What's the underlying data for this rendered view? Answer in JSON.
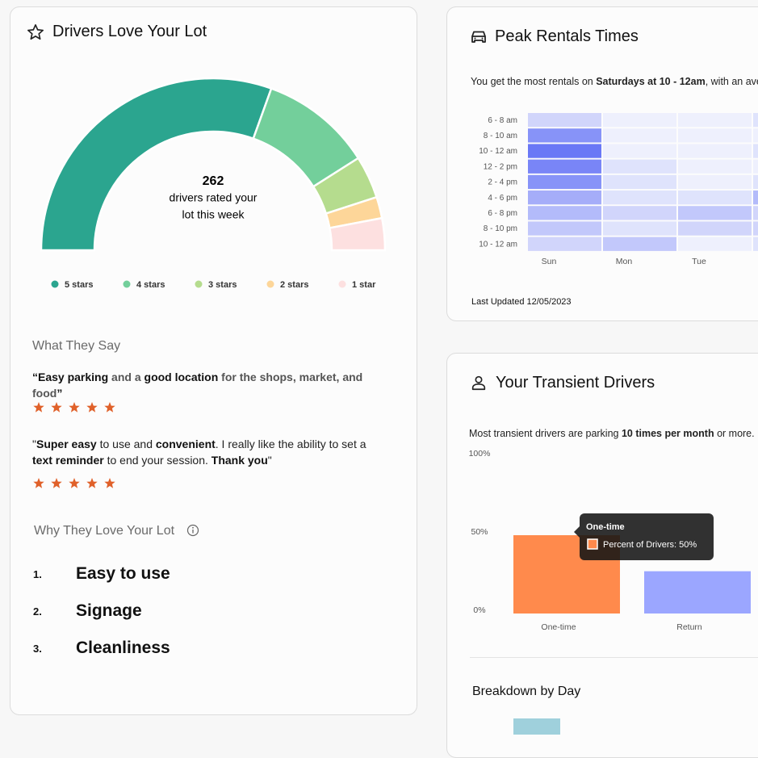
{
  "rating_card": {
    "title": "Drivers Love Your Lot",
    "total": 262,
    "total_caption": [
      "drivers rated your",
      "lot this week"
    ],
    "segments": [
      {
        "name": "5 stars",
        "color": "#2ba58f",
        "value": 61
      },
      {
        "name": "4 stars",
        "color": "#73cf9b",
        "value": 21
      },
      {
        "name": "3 stars",
        "color": "#b5dc8e",
        "value": 8
      },
      {
        "name": "2 stars",
        "color": "#fdd699",
        "value": 4
      },
      {
        "name": "1 star",
        "color": "#fde0e0",
        "value": 6
      }
    ],
    "reviews_heading": "What They Say",
    "reviews": [
      {
        "parts": [
          "“Easy parking",
          " and a ",
          "good location",
          " for the shops, market, and food",
          "”"
        ]
      },
      {
        "parts": [
          "\"",
          "Super easy",
          " to use and ",
          "convenient",
          ". I really like the ability to set a ",
          "text reminder",
          " to end your session. ",
          "Thank you",
          "\""
        ]
      }
    ],
    "reasons_heading": "Why They Love Your Lot",
    "reasons": [
      {
        "rank": "1.",
        "text": "Easy to use"
      },
      {
        "rank": "2.",
        "text": "Signage"
      },
      {
        "rank": "3.",
        "text": "Cleanliness"
      }
    ]
  },
  "peak_card": {
    "title": "Peak Rentals Times",
    "summary": [
      "You get the most rentals on ",
      "Saturdays at 10 - 12am",
      ", with an ave"
    ],
    "days": [
      "Sun",
      "Mon",
      "Tue",
      null
    ],
    "slots": [
      "6 - 8 am",
      "8 - 10 am",
      "10 - 12 am",
      "12 - 2 pm",
      "2 - 4 pm",
      "4 - 6 pm",
      "6 - 8 pm",
      "8 - 10 pm",
      "10 - 12 am"
    ],
    "intensity": [
      [
        3,
        1,
        1,
        2
      ],
      [
        8,
        1,
        1,
        1
      ],
      [
        10,
        1,
        1,
        2
      ],
      [
        9,
        2,
        1,
        1
      ],
      [
        8,
        2,
        1,
        2
      ],
      [
        6,
        2,
        2,
        5
      ],
      [
        5,
        3,
        4,
        3
      ],
      [
        4,
        2,
        3,
        3
      ],
      [
        3,
        4,
        1,
        2
      ]
    ],
    "color_low": "#eef0fd",
    "color_high": "#6a78f6",
    "updated": "Last Updated 12/05/2023"
  },
  "transient_card": {
    "title": "Your Transient Drivers",
    "summary": [
      "Most transient drivers are parking ",
      "10 times per month",
      " or more."
    ],
    "categories": [
      "One-time",
      "Return"
    ],
    "values": [
      50,
      27
    ],
    "colors": [
      "#ff8a4c",
      "#9ba6ff"
    ],
    "ylim": [
      0,
      100
    ],
    "yticks": [
      {
        "value": 0,
        "label": "0%"
      },
      {
        "value": 50,
        "label": "50%"
      },
      {
        "value": 100,
        "label": "100%"
      }
    ],
    "tooltip": {
      "title": "One-time",
      "text": "Percent of Drivers: 50%"
    },
    "breakdown_title": "Breakdown by Day"
  }
}
